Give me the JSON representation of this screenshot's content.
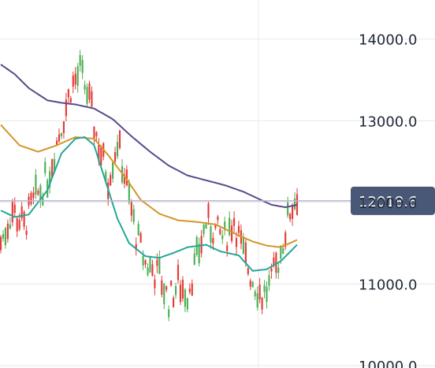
{
  "chart_data": {
    "type": "candlestick",
    "y_axis": {
      "ticks": [
        {
          "value": 10000,
          "label": "10000.0"
        },
        {
          "value": 11000,
          "label": "11000.0"
        },
        {
          "value": 12000,
          "label": "12000.0"
        },
        {
          "value": 13000,
          "label": "13000.0"
        },
        {
          "value": 14000,
          "label": "14000.0"
        }
      ],
      "range": [
        9970,
        14480
      ],
      "position": "right"
    },
    "grid": true,
    "current_price": {
      "value": 12018.6,
      "label": "12018.6"
    },
    "colors": {
      "up": "#4caf50",
      "down": "#e53935",
      "grid": "#ececf0",
      "price_line": "#b7b3d2",
      "price_tag": "#4a5878",
      "ma_short": "#26a69a",
      "ma_mid": "#d4962a",
      "ma_long": "#5c4a8a"
    },
    "candle_count": 128,
    "ma_short_path": [
      [
        0,
        11900
      ],
      [
        6,
        11820
      ],
      [
        12,
        11850
      ],
      [
        20,
        12150
      ],
      [
        26,
        12600
      ],
      [
        32,
        12780
      ],
      [
        36,
        12800
      ],
      [
        40,
        12700
      ],
      [
        45,
        12250
      ],
      [
        50,
        11800
      ],
      [
        55,
        11500
      ],
      [
        62,
        11340
      ],
      [
        68,
        11320
      ],
      [
        74,
        11380
      ],
      [
        80,
        11450
      ],
      [
        88,
        11480
      ],
      [
        94,
        11400
      ],
      [
        102,
        11350
      ],
      [
        108,
        11160
      ],
      [
        114,
        11180
      ],
      [
        120,
        11280
      ],
      [
        127,
        11480
      ]
    ],
    "ma_mid_path": [
      [
        0,
        12950
      ],
      [
        8,
        12700
      ],
      [
        16,
        12620
      ],
      [
        24,
        12700
      ],
      [
        32,
        12800
      ],
      [
        40,
        12780
      ],
      [
        46,
        12580
      ],
      [
        54,
        12280
      ],
      [
        60,
        12030
      ],
      [
        68,
        11860
      ],
      [
        76,
        11780
      ],
      [
        84,
        11760
      ],
      [
        92,
        11730
      ],
      [
        100,
        11620
      ],
      [
        108,
        11520
      ],
      [
        114,
        11470
      ],
      [
        120,
        11450
      ],
      [
        127,
        11540
      ]
    ],
    "ma_long_path": [
      [
        0,
        13690
      ],
      [
        6,
        13570
      ],
      [
        12,
        13400
      ],
      [
        20,
        13250
      ],
      [
        26,
        13220
      ],
      [
        32,
        13200
      ],
      [
        40,
        13150
      ],
      [
        48,
        13020
      ],
      [
        56,
        12810
      ],
      [
        64,
        12620
      ],
      [
        72,
        12450
      ],
      [
        80,
        12330
      ],
      [
        88,
        12270
      ],
      [
        96,
        12210
      ],
      [
        104,
        12130
      ],
      [
        110,
        12050
      ],
      [
        116,
        11970
      ],
      [
        122,
        11940
      ],
      [
        127,
        11970
      ]
    ],
    "candle_path": [
      [
        0,
        11500
      ],
      [
        5,
        11900
      ],
      [
        10,
        11700
      ],
      [
        14,
        12000
      ],
      [
        20,
        12300
      ],
      [
        26,
        12950
      ],
      [
        30,
        13400
      ],
      [
        34,
        13600
      ],
      [
        37,
        13350
      ],
      [
        42,
        12700
      ],
      [
        46,
        12300
      ],
      [
        50,
        12750
      ],
      [
        54,
        12200
      ],
      [
        58,
        11600
      ],
      [
        62,
        11250
      ],
      [
        68,
        11100
      ],
      [
        72,
        10800
      ],
      [
        76,
        11000
      ],
      [
        80,
        10900
      ],
      [
        84,
        11300
      ],
      [
        88,
        11750
      ],
      [
        92,
        11650
      ],
      [
        96,
        11550
      ],
      [
        100,
        11800
      ],
      [
        104,
        11350
      ],
      [
        108,
        11050
      ],
      [
        112,
        10850
      ],
      [
        116,
        11000
      ],
      [
        120,
        11400
      ],
      [
        124,
        11900
      ],
      [
        127,
        12100
      ]
    ]
  }
}
